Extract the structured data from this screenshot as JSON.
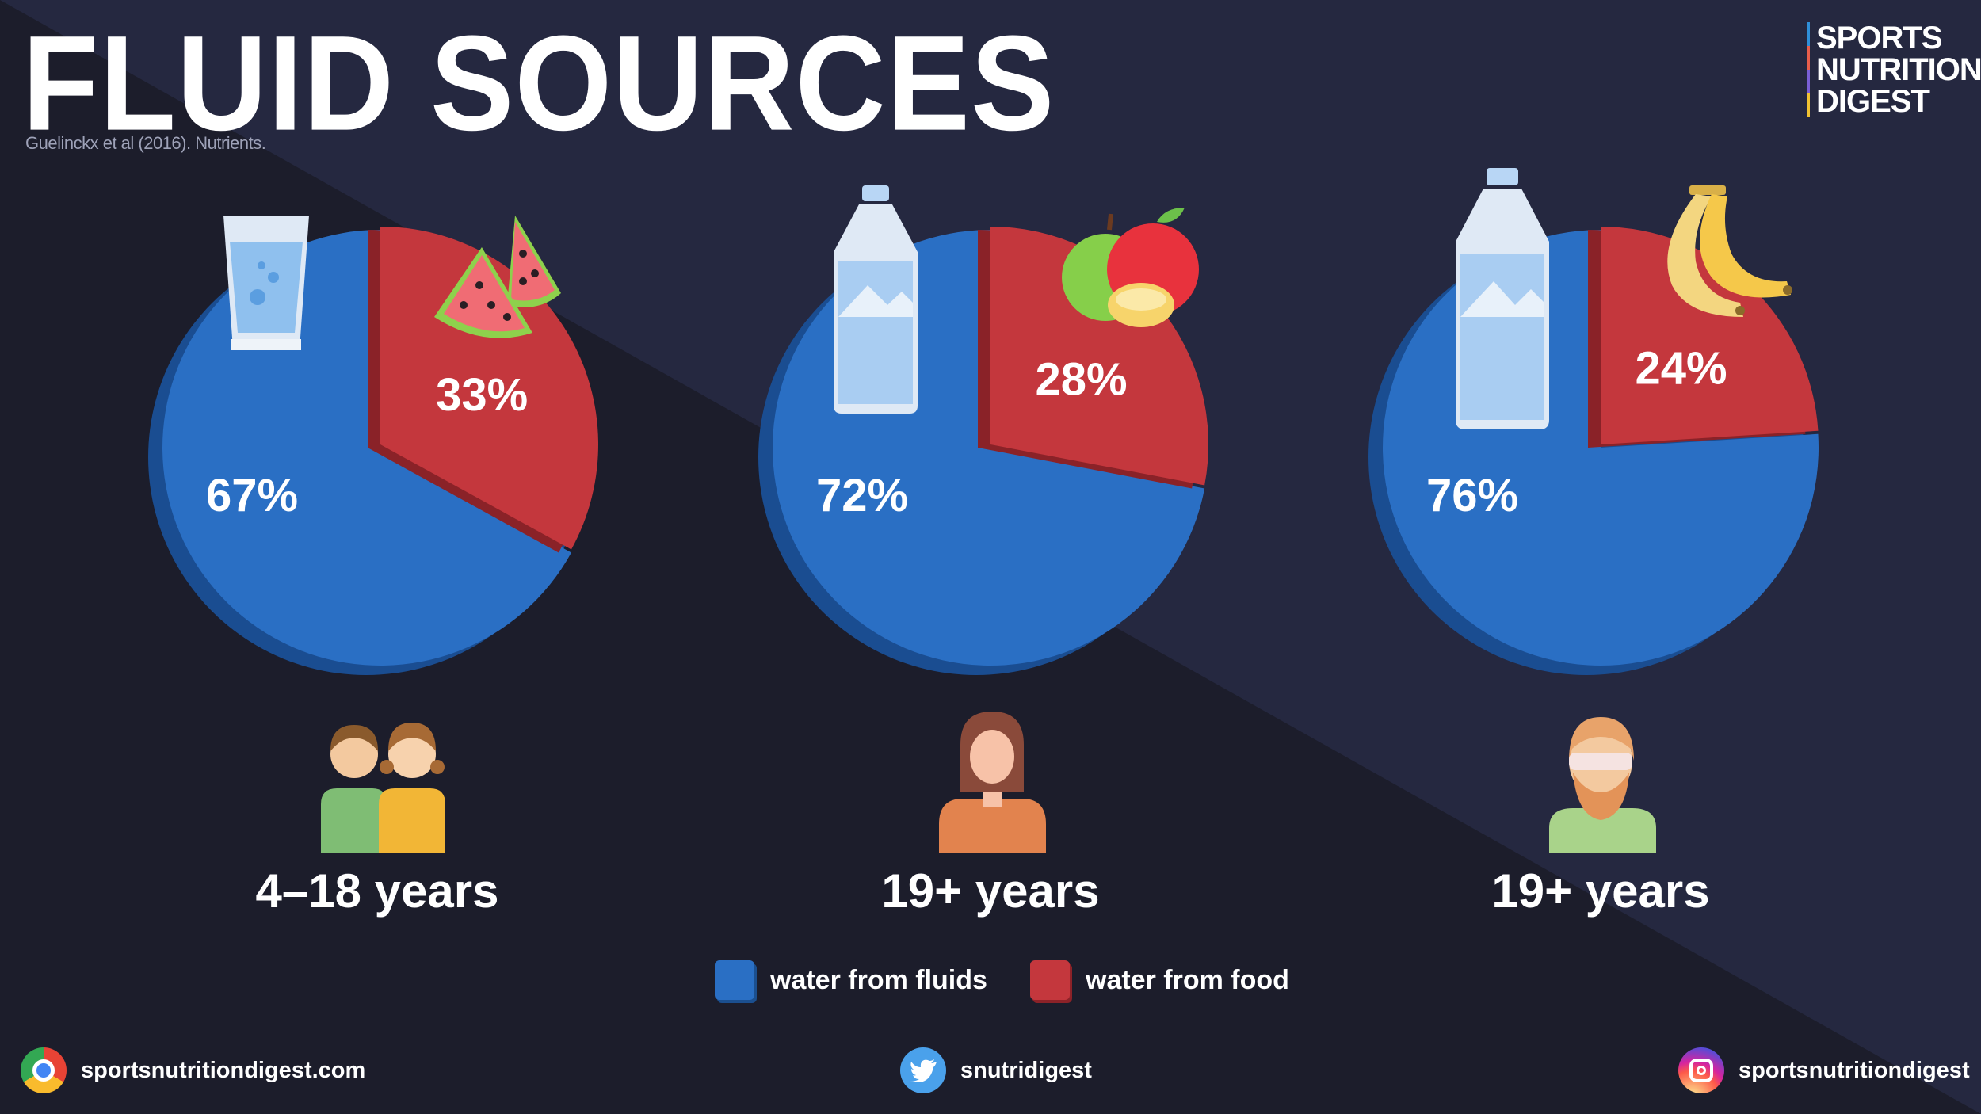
{
  "header": {
    "title": "FLUID SOURCES",
    "source": "Guelinckx et al (2016). Nutrients.",
    "brand_lines": [
      "SPORTS",
      "NUTRITION",
      "DIGEST"
    ]
  },
  "colors": {
    "background": "#1f2131",
    "fluids": "#2a6fc4",
    "food": "#c4373d"
  },
  "chart_data": [
    {
      "type": "pie",
      "title": "4–18 years",
      "categories": [
        "water from fluids",
        "water from food"
      ],
      "values": [
        67,
        33
      ],
      "labels": [
        "67%",
        "33%"
      ],
      "icons": [
        "glass-of-water-icon",
        "watermelon-icon",
        "children-icon"
      ]
    },
    {
      "type": "pie",
      "title": "19+ years",
      "categories": [
        "water from fluids",
        "water from food"
      ],
      "values": [
        72,
        28
      ],
      "labels": [
        "72%",
        "28%"
      ],
      "icons": [
        "water-bottle-icon",
        "apple-icon",
        "woman-icon"
      ]
    },
    {
      "type": "pie",
      "title": "19+ years",
      "categories": [
        "water from fluids",
        "water from food"
      ],
      "values": [
        76,
        24
      ],
      "labels": [
        "76%",
        "24%"
      ],
      "icons": [
        "water-bottle-icon",
        "banana-icon",
        "man-icon"
      ]
    }
  ],
  "legend": [
    {
      "label": "water from fluids",
      "color": "#2a6fc4"
    },
    {
      "label": "water from food",
      "color": "#c4373d"
    }
  ],
  "footer": {
    "website": "sportsnutritiondigest.com",
    "twitter": "snutridigest",
    "instagram": "sportsnutritiondigest"
  }
}
